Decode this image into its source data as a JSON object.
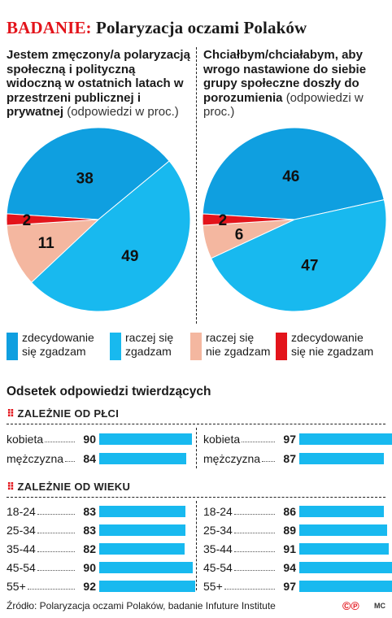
{
  "title": {
    "badge": "BADANIE:",
    "main": "Polaryzacja oczami Polaków"
  },
  "colors": {
    "strongly_agree": "#0f9fe0",
    "agree": "#18b9ef",
    "disagree": "#f4b7a0",
    "strongly_disagree": "#e3141b",
    "bar": "#18b9ef"
  },
  "questions": [
    {
      "bold": "Jestem zmęczony/a polaryzacją społeczną i polityczną widoczną w ostatnich latach w przestrzeni publicznej i prywatnej",
      "sub": "(odpowiedzi w proc.)"
    },
    {
      "bold": "Chciałbym/chciałabym, aby wrogo nastawione do siebie grupy społeczne doszły do porozumienia",
      "sub": "(odpowiedzi w proc.)"
    }
  ],
  "legend": [
    {
      "line1": "zdecydowanie",
      "line2": "się zgadzam"
    },
    {
      "line1": "raczej się",
      "line2": "zgadzam"
    },
    {
      "line1": "raczej się",
      "line2": "nie zgadzam"
    },
    {
      "line1": "zdecydowanie",
      "line2": "się nie zgadzam"
    }
  ],
  "section_title": "Odsetek odpowiedzi twierdzących",
  "group_sex": "ZALEŻNIE OD PŁCI",
  "group_age": "ZALEŻNIE OD WIEKU",
  "footer": "Źródło: Polaryzacja oczami Polaków, badanie Infuture Institute",
  "logo": "©℗",
  "signature": "MC",
  "chart_data": [
    {
      "type": "pie",
      "categories": [
        "zdecydowanie się zgadzam",
        "raczej się zgadzam",
        "raczej się nie zgadzam",
        "zdecydowanie się nie zgadzam"
      ],
      "values": [
        38,
        49,
        11,
        2
      ]
    },
    {
      "type": "pie",
      "categories": [
        "zdecydowanie się zgadzam",
        "raczej się zgadzam",
        "raczej się nie zgadzam",
        "zdecydowanie się nie zgadzam"
      ],
      "values": [
        46,
        47,
        6,
        2
      ]
    },
    {
      "type": "bar",
      "categories": [
        "kobieta",
        "mężczyzna"
      ],
      "values": [
        90,
        84
      ],
      "xlim": [
        0,
        100
      ]
    },
    {
      "type": "bar",
      "categories": [
        "kobieta",
        "mężczyzna"
      ],
      "values": [
        97,
        87
      ],
      "xlim": [
        0,
        100
      ]
    },
    {
      "type": "bar",
      "categories": [
        "18-24",
        "25-34",
        "35-44",
        "45-54",
        "55+"
      ],
      "values": [
        83,
        83,
        82,
        90,
        92
      ],
      "xlim": [
        0,
        100
      ]
    },
    {
      "type": "bar",
      "categories": [
        "18-24",
        "25-34",
        "35-44",
        "45-54",
        "55+"
      ],
      "values": [
        86,
        89,
        91,
        94,
        97
      ],
      "xlim": [
        0,
        100
      ]
    }
  ]
}
